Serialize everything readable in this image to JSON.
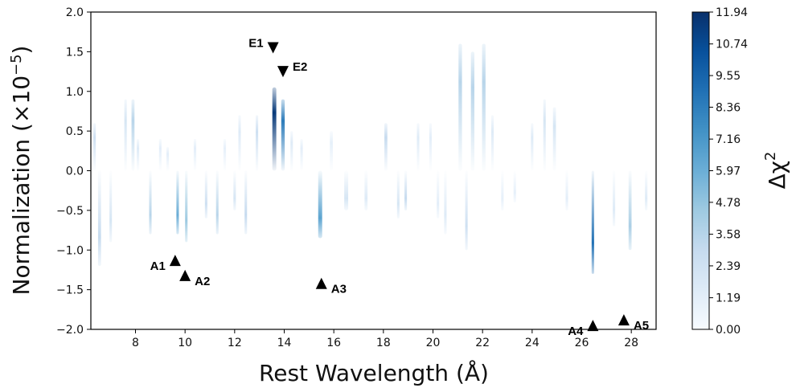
{
  "chart_data": {
    "type": "heatmap",
    "xlabel": "Rest Wavelength (Å)",
    "ylabel": "Normalization (×10",
    "ylabel_exponent": "−5",
    "ylabel_suffix": ")",
    "xlim": [
      6.2,
      29.0
    ],
    "ylim": [
      -2.0,
      2.0
    ],
    "xticks": [
      8,
      10,
      12,
      14,
      16,
      18,
      20,
      22,
      24,
      26,
      28
    ],
    "xtick_labels": [
      "8",
      "10",
      "12",
      "14",
      "16",
      "18",
      "20",
      "22",
      "24",
      "26",
      "28"
    ],
    "yticks": [
      -2.0,
      -1.5,
      -1.0,
      -0.5,
      0.0,
      0.5,
      1.0,
      1.5,
      2.0
    ],
    "ytick_labels": [
      "−2.0",
      "−1.5",
      "−1.0",
      "−0.5",
      "0.0",
      "0.5",
      "1.0",
      "1.5",
      "2.0"
    ],
    "colorbar": {
      "label": "Δχ",
      "label_exponent": "2",
      "range": [
        0.0,
        11.94
      ],
      "colormap": "Blues",
      "ticks": [
        0.0,
        1.19,
        2.39,
        3.58,
        4.78,
        5.97,
        7.16,
        8.36,
        9.55,
        10.74,
        11.94
      ],
      "tick_labels": [
        "0.00",
        "1.19",
        "2.39",
        "3.58",
        "4.78",
        "5.97",
        "7.16",
        "8.36",
        "9.55",
        "10.74",
        "11.94"
      ]
    },
    "features": [
      {
        "x": 6.35,
        "peak": 0.6,
        "amp": 2.5,
        "w": 0.05
      },
      {
        "x": 6.55,
        "peak": -1.2,
        "amp": 3.0,
        "w": 0.06
      },
      {
        "x": 7.0,
        "peak": -0.9,
        "amp": 2.0,
        "w": 0.05
      },
      {
        "x": 7.6,
        "peak": 0.9,
        "amp": 2.0,
        "w": 0.05
      },
      {
        "x": 7.9,
        "peak": 0.9,
        "amp": 3.5,
        "w": 0.06
      },
      {
        "x": 8.1,
        "peak": 0.4,
        "amp": 1.5,
        "w": 0.05
      },
      {
        "x": 8.6,
        "peak": -0.8,
        "amp": 3.5,
        "w": 0.05
      },
      {
        "x": 9.0,
        "peak": 0.4,
        "amp": 1.2,
        "w": 0.05
      },
      {
        "x": 9.3,
        "peak": 0.3,
        "amp": 1.2,
        "w": 0.05
      },
      {
        "x": 9.7,
        "peak": -0.8,
        "amp": 6.0,
        "w": 0.05
      },
      {
        "x": 10.05,
        "peak": -0.9,
        "amp": 4.5,
        "w": 0.05
      },
      {
        "x": 10.4,
        "peak": 0.4,
        "amp": 1.2,
        "w": 0.05
      },
      {
        "x": 10.85,
        "peak": -0.6,
        "amp": 2.5,
        "w": 0.05
      },
      {
        "x": 11.3,
        "peak": -0.8,
        "amp": 3.5,
        "w": 0.05
      },
      {
        "x": 11.6,
        "peak": 0.4,
        "amp": 1.0,
        "w": 0.05
      },
      {
        "x": 12.0,
        "peak": -0.5,
        "amp": 2.0,
        "w": 0.05
      },
      {
        "x": 12.2,
        "peak": 0.7,
        "amp": 1.5,
        "w": 0.05
      },
      {
        "x": 12.45,
        "peak": -0.8,
        "amp": 3.0,
        "w": 0.05
      },
      {
        "x": 12.9,
        "peak": 0.7,
        "amp": 2.5,
        "w": 0.05
      },
      {
        "x": 13.6,
        "peak": 1.05,
        "amp": 11.5,
        "w": 0.08
      },
      {
        "x": 13.95,
        "peak": 0.9,
        "amp": 8.5,
        "w": 0.07
      },
      {
        "x": 14.3,
        "peak": 0.5,
        "amp": 1.5,
        "w": 0.05
      },
      {
        "x": 14.7,
        "peak": 0.4,
        "amp": 1.2,
        "w": 0.05
      },
      {
        "x": 15.45,
        "peak": -0.85,
        "amp": 6.5,
        "w": 0.08
      },
      {
        "x": 15.9,
        "peak": 0.5,
        "amp": 1.0,
        "w": 0.06
      },
      {
        "x": 16.5,
        "peak": -0.5,
        "amp": 2.0,
        "w": 0.08
      },
      {
        "x": 17.3,
        "peak": -0.5,
        "amp": 1.5,
        "w": 0.06
      },
      {
        "x": 18.1,
        "peak": 0.6,
        "amp": 3.0,
        "w": 0.06
      },
      {
        "x": 18.6,
        "peak": -0.6,
        "amp": 2.0,
        "w": 0.05
      },
      {
        "x": 18.9,
        "peak": -0.5,
        "amp": 3.0,
        "w": 0.05
      },
      {
        "x": 19.4,
        "peak": 0.6,
        "amp": 1.5,
        "w": 0.05
      },
      {
        "x": 19.9,
        "peak": 0.6,
        "amp": 1.2,
        "w": 0.05
      },
      {
        "x": 20.2,
        "peak": -0.6,
        "amp": 1.2,
        "w": 0.05
      },
      {
        "x": 20.5,
        "peak": -0.8,
        "amp": 1.5,
        "w": 0.05
      },
      {
        "x": 21.1,
        "peak": 1.6,
        "amp": 3.5,
        "w": 0.07
      },
      {
        "x": 21.35,
        "peak": -1.0,
        "amp": 2.5,
        "w": 0.05
      },
      {
        "x": 21.6,
        "peak": 1.5,
        "amp": 3.5,
        "w": 0.07
      },
      {
        "x": 22.05,
        "peak": 1.6,
        "amp": 3.5,
        "w": 0.07
      },
      {
        "x": 22.4,
        "peak": 0.7,
        "amp": 1.5,
        "w": 0.05
      },
      {
        "x": 22.8,
        "peak": -0.5,
        "amp": 1.0,
        "w": 0.05
      },
      {
        "x": 23.3,
        "peak": -0.4,
        "amp": 1.0,
        "w": 0.05
      },
      {
        "x": 24.0,
        "peak": 0.6,
        "amp": 1.5,
        "w": 0.05
      },
      {
        "x": 24.5,
        "peak": 0.9,
        "amp": 2.0,
        "w": 0.05
      },
      {
        "x": 24.9,
        "peak": 0.8,
        "amp": 2.0,
        "w": 0.06
      },
      {
        "x": 25.4,
        "peak": -0.5,
        "amp": 1.2,
        "w": 0.05
      },
      {
        "x": 26.45,
        "peak": -1.3,
        "amp": 9.0,
        "w": 0.05
      },
      {
        "x": 27.3,
        "peak": -0.7,
        "amp": 1.5,
        "w": 0.05
      },
      {
        "x": 27.95,
        "peak": -1.0,
        "amp": 4.0,
        "w": 0.06
      },
      {
        "x": 28.6,
        "peak": -0.5,
        "amp": 1.5,
        "w": 0.05
      }
    ],
    "markers": [
      {
        "label": "E1",
        "x": 13.55,
        "y": 1.55,
        "dir": "down",
        "label_side": "left"
      },
      {
        "label": "E2",
        "x": 13.95,
        "y": 1.25,
        "dir": "down",
        "label_side": "right"
      },
      {
        "label": "A1",
        "x": 9.6,
        "y": -1.13,
        "dir": "up",
        "label_side": "left"
      },
      {
        "label": "A2",
        "x": 10.0,
        "y": -1.32,
        "dir": "up",
        "label_side": "right"
      },
      {
        "label": "A3",
        "x": 15.5,
        "y": -1.42,
        "dir": "up",
        "label_side": "right"
      },
      {
        "label": "A4",
        "x": 26.45,
        "y": -1.95,
        "dir": "up",
        "label_side": "left"
      },
      {
        "label": "A5",
        "x": 27.7,
        "y": -1.88,
        "dir": "up",
        "label_side": "right"
      }
    ]
  }
}
